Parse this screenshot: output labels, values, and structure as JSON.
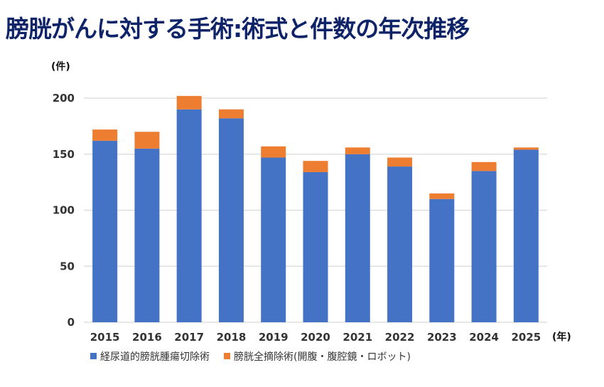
{
  "chart_data": {
    "type": "bar",
    "stacked": true,
    "title": "膀胱がんに対する手術:術式と件数の年次推移",
    "ylabel": "(件)",
    "xlabel": "(年)",
    "ylim": [
      0,
      200
    ],
    "yticks": [
      0,
      50,
      100,
      150,
      200
    ],
    "grid": true,
    "legend_position": "bottom",
    "categories": [
      "2015",
      "2016",
      "2017",
      "2018",
      "2019",
      "2020",
      "2021",
      "2022",
      "2023",
      "2024",
      "2025"
    ],
    "series": [
      {
        "name": "経尿道的膀胱腫瘍切除術",
        "color": "#4472C4",
        "values": [
          162,
          155,
          190,
          182,
          147,
          134,
          150,
          139,
          110,
          135,
          154
        ]
      },
      {
        "name": "膀胱全摘除術(開腹・腹腔鏡・ロボット)",
        "color": "#ED7D31",
        "values": [
          10,
          15,
          12,
          8,
          10,
          10,
          6,
          8,
          5,
          8,
          2
        ]
      }
    ]
  }
}
